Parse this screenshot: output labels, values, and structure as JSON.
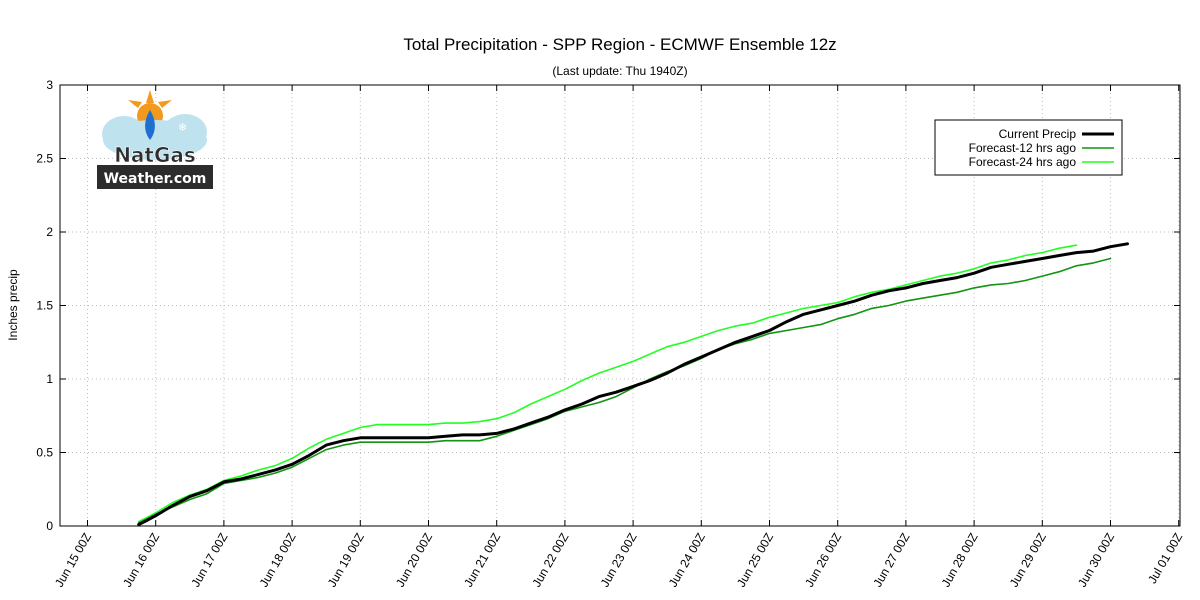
{
  "chart_data": {
    "type": "line",
    "title": "Total Precipitation - SPP Region - ECMWF Ensemble 12z",
    "subtitle": "(Last update: Thu 1940Z)",
    "ylabel": "Inches precip",
    "xlabel": "",
    "x_unit": "days since Jun 15 00Z",
    "xlim": [
      0,
      16
    ],
    "ylim": [
      0,
      3
    ],
    "yticks": [
      0,
      0.5,
      1,
      1.5,
      2,
      2.5,
      3
    ],
    "ytick_labels": [
      "0",
      "0.5",
      "1",
      "1.5",
      "2",
      "2.5",
      "3"
    ],
    "xticks": [
      0,
      1,
      2,
      3,
      4,
      5,
      6,
      7,
      8,
      9,
      10,
      11,
      12,
      13,
      14,
      15,
      16
    ],
    "xtick_labels": [
      "Jun 15 00Z",
      "Jun 16 00Z",
      "Jun 17 00Z",
      "Jun 18 00Z",
      "Jun 19 00Z",
      "Jun 20 00Z",
      "Jun 21 00Z",
      "Jun 22 00Z",
      "Jun 23 00Z",
      "Jun 24 00Z",
      "Jun 25 00Z",
      "Jun 26 00Z",
      "Jun 27 00Z",
      "Jun 28 00Z",
      "Jun 29 00Z",
      "Jun 30 00Z",
      "Jul 01 00Z"
    ],
    "grid": true,
    "legend_position": "top-right",
    "series": [
      {
        "name": "Current Precip",
        "color": "#000000",
        "line_width": 3,
        "x": [
          0.75,
          0.88,
          1.0,
          1.25,
          1.5,
          1.75,
          2.0,
          2.25,
          2.5,
          2.75,
          3.0,
          3.25,
          3.5,
          3.75,
          4.0,
          4.5,
          5.0,
          5.25,
          5.5,
          5.75,
          6.0,
          6.25,
          6.5,
          6.75,
          7.0,
          7.25,
          7.5,
          7.75,
          8.0,
          8.25,
          8.5,
          8.75,
          9.0,
          9.25,
          9.5,
          9.75,
          10.0,
          10.25,
          10.5,
          10.75,
          11.0,
          11.25,
          11.5,
          11.75,
          12.0,
          12.25,
          12.5,
          12.75,
          13.0,
          13.25,
          13.5,
          13.75,
          14.0,
          14.25,
          14.5,
          14.75,
          15.0,
          15.25
        ],
        "y": [
          0.01,
          0.04,
          0.07,
          0.14,
          0.2,
          0.24,
          0.3,
          0.32,
          0.35,
          0.38,
          0.42,
          0.48,
          0.55,
          0.58,
          0.6,
          0.6,
          0.6,
          0.61,
          0.62,
          0.62,
          0.63,
          0.66,
          0.7,
          0.74,
          0.79,
          0.83,
          0.88,
          0.91,
          0.95,
          0.99,
          1.04,
          1.1,
          1.15,
          1.2,
          1.25,
          1.29,
          1.33,
          1.39,
          1.44,
          1.47,
          1.5,
          1.53,
          1.57,
          1.6,
          1.62,
          1.65,
          1.67,
          1.69,
          1.72,
          1.76,
          1.78,
          1.8,
          1.82,
          1.84,
          1.86,
          1.87,
          1.9,
          1.92
        ]
      },
      {
        "name": "Forecast-12 hrs ago",
        "color": "#129412",
        "line_width": 1.6,
        "x": [
          0.75,
          0.88,
          1.0,
          1.25,
          1.5,
          1.75,
          2.0,
          2.25,
          2.5,
          2.75,
          3.0,
          3.25,
          3.5,
          3.75,
          4.0,
          4.5,
          5.0,
          5.25,
          5.5,
          5.75,
          6.0,
          6.25,
          6.5,
          6.75,
          7.0,
          7.25,
          7.5,
          7.75,
          8.0,
          8.25,
          8.5,
          8.75,
          9.0,
          9.25,
          9.5,
          9.75,
          10.0,
          10.25,
          10.5,
          10.75,
          11.0,
          11.25,
          11.5,
          11.75,
          12.0,
          12.25,
          12.5,
          12.75,
          13.0,
          13.25,
          13.5,
          13.75,
          14.0,
          14.25,
          14.5,
          14.75,
          15.0
        ],
        "y": [
          0.02,
          0.05,
          0.08,
          0.13,
          0.18,
          0.22,
          0.29,
          0.31,
          0.33,
          0.36,
          0.4,
          0.46,
          0.52,
          0.55,
          0.57,
          0.57,
          0.57,
          0.58,
          0.58,
          0.58,
          0.61,
          0.65,
          0.69,
          0.73,
          0.78,
          0.81,
          0.84,
          0.88,
          0.94,
          1.0,
          1.05,
          1.09,
          1.14,
          1.2,
          1.24,
          1.27,
          1.31,
          1.33,
          1.35,
          1.37,
          1.41,
          1.44,
          1.48,
          1.5,
          1.53,
          1.55,
          1.57,
          1.59,
          1.62,
          1.64,
          1.65,
          1.67,
          1.7,
          1.73,
          1.77,
          1.79,
          1.82
        ]
      },
      {
        "name": "Forecast-24 hrs ago",
        "color": "#22ff22",
        "line_width": 1.6,
        "x": [
          0.75,
          0.88,
          1.0,
          1.25,
          1.5,
          1.75,
          2.0,
          2.25,
          2.5,
          2.75,
          3.0,
          3.25,
          3.5,
          3.75,
          4.0,
          4.25,
          4.5,
          5.0,
          5.25,
          5.5,
          5.75,
          6.0,
          6.25,
          6.5,
          6.75,
          7.0,
          7.25,
          7.5,
          7.75,
          8.0,
          8.25,
          8.5,
          8.75,
          9.0,
          9.25,
          9.5,
          9.75,
          10.0,
          10.25,
          10.5,
          10.75,
          11.0,
          11.25,
          11.5,
          11.75,
          12.0,
          12.25,
          12.5,
          12.75,
          13.0,
          13.25,
          13.5,
          13.75,
          14.0,
          14.25,
          14.5
        ],
        "y": [
          0.03,
          0.06,
          0.09,
          0.16,
          0.21,
          0.25,
          0.31,
          0.34,
          0.38,
          0.41,
          0.46,
          0.53,
          0.59,
          0.63,
          0.67,
          0.69,
          0.69,
          0.69,
          0.7,
          0.7,
          0.71,
          0.73,
          0.77,
          0.83,
          0.88,
          0.93,
          0.99,
          1.04,
          1.08,
          1.12,
          1.17,
          1.22,
          1.25,
          1.29,
          1.33,
          1.36,
          1.38,
          1.42,
          1.45,
          1.48,
          1.5,
          1.52,
          1.56,
          1.59,
          1.61,
          1.64,
          1.67,
          1.7,
          1.72,
          1.75,
          1.79,
          1.81,
          1.84,
          1.86,
          1.89,
          1.91
        ]
      }
    ]
  },
  "logo": {
    "line1": "NatGas",
    "line2": "Weather.com"
  }
}
